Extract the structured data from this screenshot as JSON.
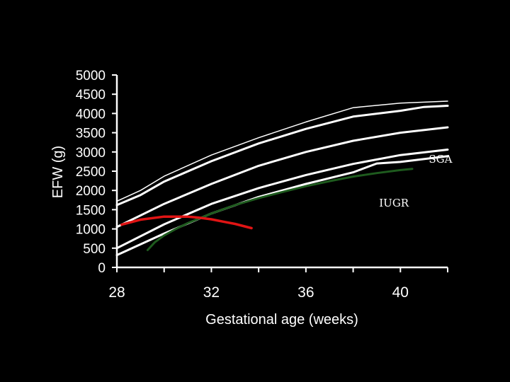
{
  "chart_data": {
    "type": "line",
    "title": "",
    "xlabel": "Gestational age (weeks)",
    "ylabel": "EFW (g)",
    "xlim": [
      28,
      42
    ],
    "ylim": [
      0,
      5000
    ],
    "x_ticks": [
      28,
      32,
      36,
      40
    ],
    "x_minor_ticks": [
      30,
      34,
      38,
      42
    ],
    "y_ticks": [
      0,
      500,
      1000,
      1500,
      2000,
      2500,
      3000,
      3500,
      4000,
      4500,
      5000
    ],
    "grid": false,
    "background": "#000000",
    "series": [
      {
        "color": "#ffffff",
        "width": 1.5,
        "x": [
          28,
          29,
          30,
          32,
          34,
          36,
          38,
          40,
          42
        ],
        "y": [
          1720,
          2000,
          2370,
          2920,
          3370,
          3780,
          4150,
          4270,
          4320
        ]
      },
      {
        "color": "#ffffff",
        "width": 3,
        "x": [
          28,
          29,
          30,
          32,
          34,
          36,
          38,
          40,
          41,
          42
        ],
        "y": [
          1620,
          1880,
          2230,
          2760,
          3220,
          3600,
          3920,
          4070,
          4170,
          4200
        ]
      },
      {
        "color": "#ffffff",
        "width": 3,
        "x": [
          28,
          30,
          32,
          34,
          36,
          38,
          40,
          42
        ],
        "y": [
          1050,
          1650,
          2170,
          2640,
          3000,
          3290,
          3500,
          3640
        ]
      },
      {
        "color": "#ffffff",
        "width": 3,
        "x": [
          28,
          30,
          32,
          34,
          36,
          38,
          40,
          42
        ],
        "y": [
          500,
          1120,
          1650,
          2060,
          2400,
          2690,
          2920,
          3060
        ]
      },
      {
        "color": "#ffffff",
        "width": 3,
        "x": [
          28,
          30,
          32,
          34,
          36,
          38,
          39,
          40,
          42
        ],
        "y": [
          320,
          880,
          1400,
          1830,
          2170,
          2470,
          2700,
          2740,
          2890
        ]
      },
      {
        "color": "#1e5b1e",
        "width": 3,
        "x": [
          29.3,
          29.6,
          30,
          30.5,
          31,
          32,
          33,
          34,
          35,
          36,
          37,
          38,
          39,
          40,
          40.5
        ],
        "y": [
          450,
          650,
          830,
          1000,
          1150,
          1400,
          1620,
          1800,
          1960,
          2110,
          2240,
          2360,
          2450,
          2530,
          2560
        ]
      },
      {
        "color": "#e01414",
        "width": 3.5,
        "x": [
          28.2,
          29,
          30,
          31,
          31.5,
          32,
          32.5,
          33,
          33.7
        ],
        "y": [
          1110,
          1240,
          1320,
          1320,
          1290,
          1250,
          1190,
          1130,
          1020
        ]
      }
    ],
    "annotations": [
      {
        "text": "SGA",
        "x": 41.2,
        "y": 2720
      },
      {
        "text": "IUGR",
        "x": 39.1,
        "y": 1580
      }
    ]
  }
}
